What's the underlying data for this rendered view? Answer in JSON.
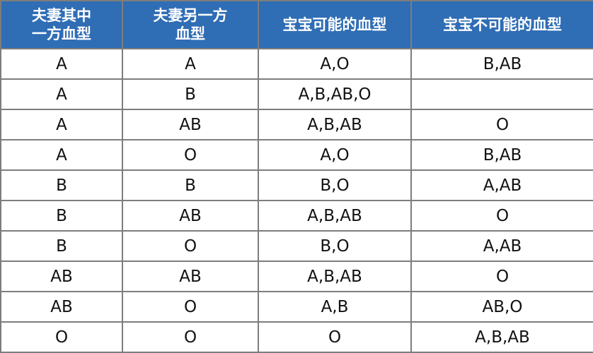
{
  "table": {
    "headers": [
      "夫妻其中\n一方血型",
      "夫妻另一方\n血型",
      "宝宝可能的血型",
      "宝宝不可能的血型"
    ],
    "header_color": "#2f6db5",
    "rows": [
      [
        "A",
        "A",
        "A,O",
        "B,AB"
      ],
      [
        "A",
        "B",
        "A,B,AB,O",
        ""
      ],
      [
        "A",
        "AB",
        "A,B,AB",
        "O"
      ],
      [
        "A",
        "O",
        "A,O",
        "B,AB"
      ],
      [
        "B",
        "B",
        "B,O",
        "A,AB"
      ],
      [
        "B",
        "AB",
        "A,B,AB",
        "O"
      ],
      [
        "B",
        "O",
        "B,O",
        "A,AB"
      ],
      [
        "AB",
        "AB",
        "A,B,AB",
        "O"
      ],
      [
        "AB",
        "O",
        "A,B",
        "AB,O"
      ],
      [
        "O",
        "O",
        "O",
        "A,B,AB"
      ]
    ]
  }
}
